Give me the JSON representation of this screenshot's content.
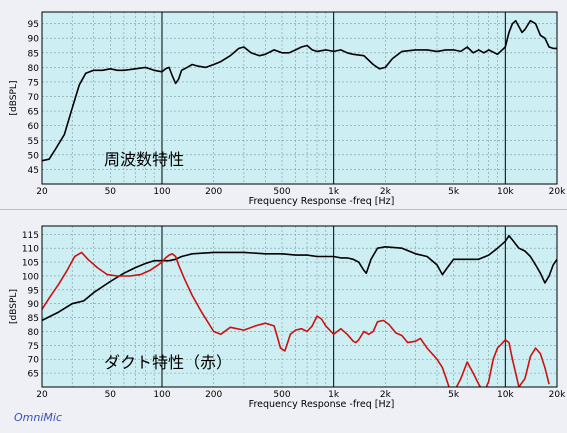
{
  "app": {
    "brand": "OmniMic"
  },
  "chart_data": [
    {
      "type": "line",
      "xlabel": "Frequency Response -freq [Hz]",
      "ylabel": "[dBSPL]",
      "annotation": "周波数特性",
      "x_scale": "log",
      "xlim": [
        20,
        20000
      ],
      "ylim": [
        40,
        99
      ],
      "y_ticks": [
        45,
        50,
        55,
        60,
        65,
        70,
        75,
        80,
        85,
        90,
        95
      ],
      "x_tick_labels": [
        {
          "value": 20,
          "label": "20"
        },
        {
          "value": 50,
          "label": "50"
        },
        {
          "value": 100,
          "label": "100"
        },
        {
          "value": 200,
          "label": "200"
        },
        {
          "value": 500,
          "label": "500"
        },
        {
          "value": 1000,
          "label": "1k"
        },
        {
          "value": 2000,
          "label": "2k"
        },
        {
          "value": 5000,
          "label": "5k"
        },
        {
          "value": 10000,
          "label": "10k"
        },
        {
          "value": 20000,
          "label": "20k"
        }
      ],
      "grid": true,
      "background": "#cdeff3",
      "series": [
        {
          "color": "#000000",
          "points": [
            [
              20,
              48
            ],
            [
              22,
              48.5
            ],
            [
              24,
              52
            ],
            [
              27,
              57
            ],
            [
              30,
              66
            ],
            [
              33,
              74
            ],
            [
              36,
              78
            ],
            [
              40,
              79
            ],
            [
              45,
              79
            ],
            [
              50,
              79.5
            ],
            [
              55,
              79
            ],
            [
              60,
              79
            ],
            [
              70,
              79.5
            ],
            [
              80,
              80
            ],
            [
              90,
              79
            ],
            [
              100,
              78.5
            ],
            [
              105,
              79.5
            ],
            [
              110,
              80
            ],
            [
              115,
              77
            ],
            [
              120,
              74.5
            ],
            [
              125,
              76
            ],
            [
              130,
              79
            ],
            [
              140,
              80
            ],
            [
              150,
              81
            ],
            [
              160,
              80.5
            ],
            [
              180,
              80
            ],
            [
              200,
              81
            ],
            [
              220,
              82
            ],
            [
              250,
              84
            ],
            [
              280,
              86.5
            ],
            [
              300,
              87
            ],
            [
              330,
              85
            ],
            [
              370,
              84
            ],
            [
              400,
              84.5
            ],
            [
              450,
              86
            ],
            [
              500,
              85
            ],
            [
              550,
              85
            ],
            [
              600,
              86
            ],
            [
              650,
              87
            ],
            [
              700,
              87.5
            ],
            [
              750,
              86
            ],
            [
              800,
              85.5
            ],
            [
              900,
              86
            ],
            [
              1000,
              85.5
            ],
            [
              1100,
              86
            ],
            [
              1200,
              85
            ],
            [
              1300,
              84.5
            ],
            [
              1500,
              84
            ],
            [
              1700,
              81
            ],
            [
              1850,
              79.5
            ],
            [
              2000,
              80
            ],
            [
              2200,
              83
            ],
            [
              2500,
              85.5
            ],
            [
              3000,
              86
            ],
            [
              3500,
              86
            ],
            [
              4000,
              85.5
            ],
            [
              4500,
              86
            ],
            [
              5000,
              86
            ],
            [
              5500,
              85.5
            ],
            [
              6000,
              87
            ],
            [
              6500,
              85
            ],
            [
              7000,
              86
            ],
            [
              7500,
              85
            ],
            [
              8000,
              86
            ],
            [
              9000,
              84.5
            ],
            [
              10000,
              87
            ],
            [
              10500,
              92
            ],
            [
              11000,
              95
            ],
            [
              11500,
              96
            ],
            [
              12000,
              94
            ],
            [
              12500,
              92
            ],
            [
              13000,
              93
            ],
            [
              14000,
              96
            ],
            [
              15000,
              95
            ],
            [
              16000,
              91
            ],
            [
              17000,
              90
            ],
            [
              18000,
              87
            ],
            [
              19000,
              86.5
            ],
            [
              20000,
              86.5
            ]
          ]
        }
      ]
    },
    {
      "type": "line",
      "xlabel": "Frequency Response -freq [Hz]",
      "ylabel": "[dBSPL]",
      "annotation": "ダクト特性（赤）",
      "x_scale": "log",
      "xlim": [
        20,
        20000
      ],
      "ylim": [
        60,
        118
      ],
      "y_ticks": [
        65,
        70,
        75,
        80,
        85,
        90,
        95,
        100,
        105,
        110,
        115
      ],
      "x_tick_labels": [
        {
          "value": 20,
          "label": "20"
        },
        {
          "value": 50,
          "label": "50"
        },
        {
          "value": 100,
          "label": "100"
        },
        {
          "value": 200,
          "label": "200"
        },
        {
          "value": 500,
          "label": "500"
        },
        {
          "value": 1000,
          "label": "1k"
        },
        {
          "value": 2000,
          "label": "2k"
        },
        {
          "value": 5000,
          "label": "5k"
        },
        {
          "value": 10000,
          "label": "10k"
        },
        {
          "value": 20000,
          "label": "20k"
        }
      ],
      "grid": true,
      "background": "#cdeff3",
      "series": [
        {
          "color": "#000000",
          "points": [
            [
              20,
              84
            ],
            [
              25,
              87
            ],
            [
              30,
              90
            ],
            [
              35,
              91
            ],
            [
              40,
              94
            ],
            [
              50,
              98
            ],
            [
              60,
              101
            ],
            [
              70,
              103
            ],
            [
              80,
              104.5
            ],
            [
              90,
              105.5
            ],
            [
              100,
              105.5
            ],
            [
              110,
              105.5
            ],
            [
              120,
              106
            ],
            [
              130,
              107
            ],
            [
              140,
              107.5
            ],
            [
              150,
              108
            ],
            [
              200,
              108.5
            ],
            [
              300,
              108.5
            ],
            [
              400,
              108
            ],
            [
              500,
              108
            ],
            [
              600,
              107.5
            ],
            [
              700,
              107.5
            ],
            [
              800,
              107
            ],
            [
              900,
              107
            ],
            [
              1000,
              107
            ],
            [
              1100,
              106.5
            ],
            [
              1200,
              106.5
            ],
            [
              1300,
              106
            ],
            [
              1400,
              105
            ],
            [
              1500,
              102
            ],
            [
              1550,
              101
            ],
            [
              1650,
              106
            ],
            [
              1800,
              110
            ],
            [
              2000,
              110.5
            ],
            [
              2500,
              110
            ],
            [
              3000,
              108
            ],
            [
              3500,
              107
            ],
            [
              4000,
              104
            ],
            [
              4300,
              100.5
            ],
            [
              4600,
              103
            ],
            [
              5000,
              106
            ],
            [
              6000,
              106
            ],
            [
              7000,
              106
            ],
            [
              8000,
              107.5
            ],
            [
              9000,
              110
            ],
            [
              10000,
              112.5
            ],
            [
              10500,
              114.5
            ],
            [
              11000,
              113
            ],
            [
              12000,
              110
            ],
            [
              13000,
              109
            ],
            [
              14000,
              107
            ],
            [
              15000,
              104
            ],
            [
              16000,
              101
            ],
            [
              17000,
              97.5
            ],
            [
              18000,
              100
            ],
            [
              19000,
              104
            ],
            [
              20000,
              106
            ]
          ]
        },
        {
          "color": "#cc1111",
          "points": [
            [
              20,
              88
            ],
            [
              22,
              92
            ],
            [
              25,
              97
            ],
            [
              28,
              102
            ],
            [
              31,
              107
            ],
            [
              34,
              108.5
            ],
            [
              37,
              106
            ],
            [
              42,
              103
            ],
            [
              48,
              100.5
            ],
            [
              55,
              100
            ],
            [
              65,
              100
            ],
            [
              75,
              100.5
            ],
            [
              85,
              102
            ],
            [
              95,
              104
            ],
            [
              100,
              105
            ],
            [
              105,
              106.5
            ],
            [
              110,
              107.5
            ],
            [
              115,
              108
            ],
            [
              120,
              107
            ],
            [
              125,
              104
            ],
            [
              135,
              99
            ],
            [
              150,
              93
            ],
            [
              170,
              87
            ],
            [
              200,
              80
            ],
            [
              220,
              79
            ],
            [
              250,
              81.5
            ],
            [
              300,
              80.5
            ],
            [
              350,
              82
            ],
            [
              400,
              83
            ],
            [
              450,
              82
            ],
            [
              470,
              78
            ],
            [
              490,
              74
            ],
            [
              520,
              73
            ],
            [
              560,
              79
            ],
            [
              600,
              80.5
            ],
            [
              650,
              81
            ],
            [
              700,
              80
            ],
            [
              750,
              82
            ],
            [
              800,
              85.5
            ],
            [
              850,
              84.5
            ],
            [
              900,
              82
            ],
            [
              1000,
              79
            ],
            [
              1100,
              81
            ],
            [
              1200,
              79
            ],
            [
              1300,
              76.5
            ],
            [
              1350,
              76
            ],
            [
              1400,
              77
            ],
            [
              1500,
              80
            ],
            [
              1600,
              79
            ],
            [
              1700,
              80
            ],
            [
              1800,
              83.5
            ],
            [
              1950,
              84
            ],
            [
              2100,
              82.5
            ],
            [
              2300,
              79.5
            ],
            [
              2500,
              78.5
            ],
            [
              2700,
              76
            ],
            [
              3000,
              76.5
            ],
            [
              3200,
              77.5
            ],
            [
              3500,
              74
            ],
            [
              4000,
              70
            ],
            [
              4300,
              67
            ],
            [
              4500,
              63.5
            ],
            [
              4700,
              60
            ],
            [
              5000,
              58
            ],
            [
              5500,
              63
            ],
            [
              6000,
              69
            ],
            [
              6500,
              65
            ],
            [
              7000,
              61
            ],
            [
              7500,
              58
            ],
            [
              8000,
              62
            ],
            [
              8500,
              70
            ],
            [
              9000,
              74
            ],
            [
              9500,
              75.5
            ],
            [
              10000,
              77
            ],
            [
              10500,
              76
            ],
            [
              11000,
              70
            ],
            [
              11500,
              65
            ],
            [
              12000,
              60
            ],
            [
              13000,
              63
            ],
            [
              13500,
              67
            ],
            [
              14000,
              71
            ],
            [
              15000,
              74
            ],
            [
              16000,
              72
            ],
            [
              17000,
              67
            ],
            [
              18000,
              61
            ]
          ]
        }
      ]
    }
  ]
}
